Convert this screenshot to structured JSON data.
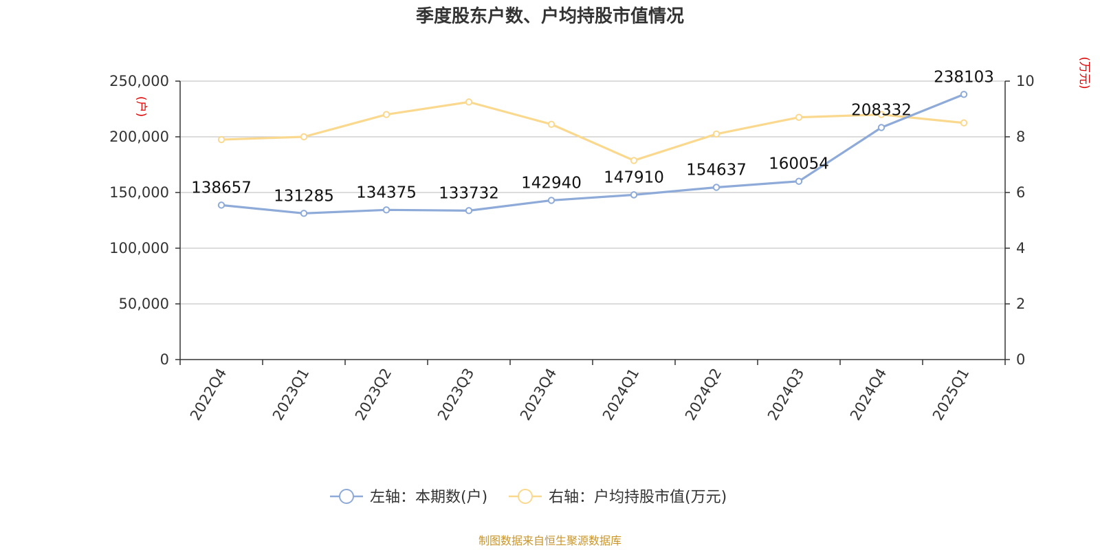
{
  "chart_data": {
    "type": "line",
    "title": "季度股东户数、户均持股市值情况",
    "categories": [
      "2022Q4",
      "2023Q1",
      "2023Q2",
      "2023Q3",
      "2023Q4",
      "2024Q1",
      "2024Q2",
      "2024Q3",
      "2024Q4",
      "2025Q1"
    ],
    "left_axis": {
      "unit": "(户)",
      "range": [
        0,
        250000
      ],
      "ticks": [
        0,
        50000,
        100000,
        150000,
        200000,
        250000
      ],
      "tick_labels": [
        "0",
        "50,000",
        "100,000",
        "150,000",
        "200,000",
        "250,000"
      ]
    },
    "right_axis": {
      "unit": "(万元)",
      "range": [
        0,
        10
      ],
      "ticks": [
        0,
        2,
        4,
        6,
        8,
        10
      ],
      "tick_labels": [
        "0",
        "2",
        "4",
        "6",
        "8",
        "10"
      ]
    },
    "series": [
      {
        "name": "左轴：本期数(户)",
        "axis": "left",
        "color": "#8eaad8",
        "values": [
          138657,
          131285,
          134375,
          133732,
          142940,
          147910,
          154637,
          160054,
          208332,
          238103
        ],
        "labels": [
          "138657",
          "131285",
          "134375",
          "133732",
          "142940",
          "147910",
          "154637",
          "160054",
          "208332",
          "238103"
        ]
      },
      {
        "name": "右轴：户均持股市值(万元)",
        "axis": "right",
        "color": "#fad98f",
        "values": [
          7.9,
          8.0,
          8.8,
          9.25,
          8.45,
          7.15,
          8.1,
          8.7,
          8.8,
          8.5
        ]
      }
    ],
    "grid": true,
    "legend_position": "bottom-center"
  },
  "footer": {
    "source": "制图数据来自恒生聚源数据库"
  }
}
